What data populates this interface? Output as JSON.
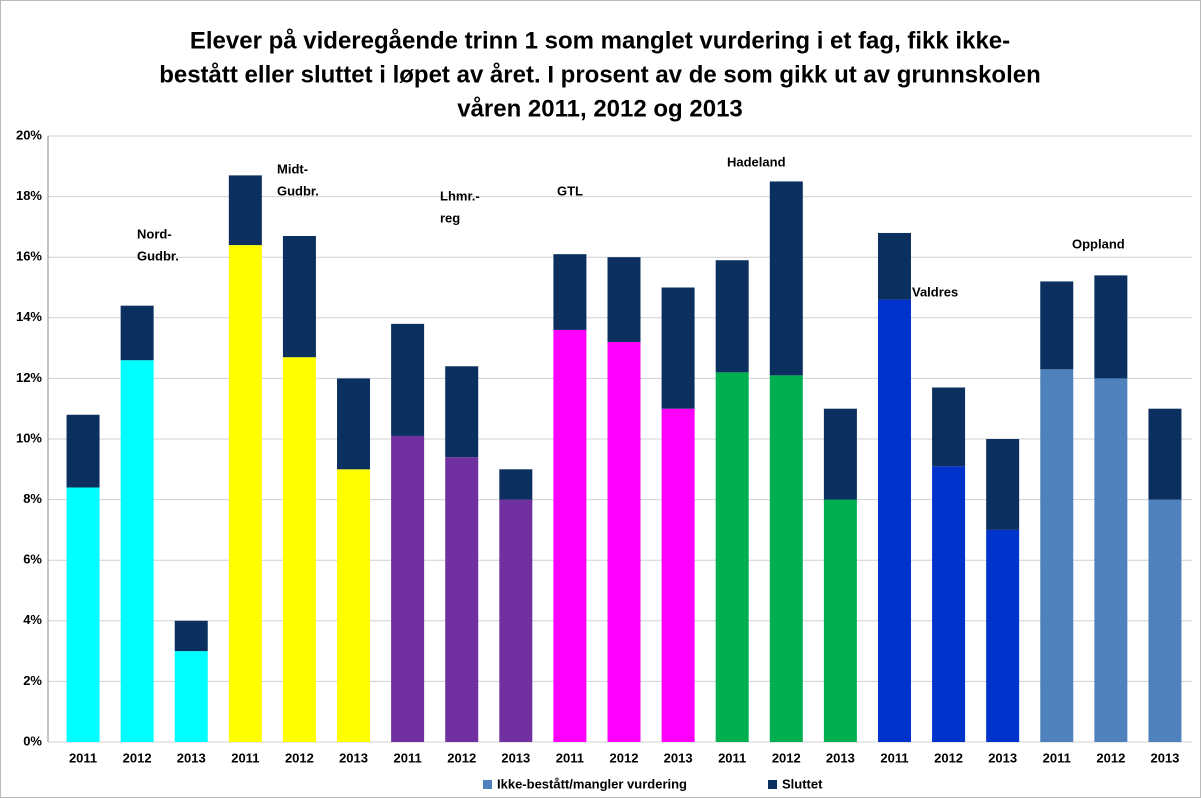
{
  "chart_data": {
    "type": "stacked_bar",
    "title": [
      "Elever på videregående trinn 1 som manglet vurdering i et fag, fikk ikke-",
      "bestått eller sluttet i løpet av året. I prosent av de som gikk ut av grunnskolen",
      "våren 2011, 2012 og 2013"
    ],
    "categories": [
      "2011",
      "2012",
      "2013",
      "2011",
      "2012",
      "2013",
      "2011",
      "2012",
      "2013",
      "2011",
      "2012",
      "2013",
      "2011",
      "2012",
      "2013",
      "2011",
      "2012",
      "2013",
      "2011",
      "2012",
      "2013"
    ],
    "annotations": [
      [
        "Nord-",
        "Gudbr."
      ],
      [
        "Midt-",
        "Gudbr."
      ],
      [
        "Lhmr.-",
        "reg"
      ],
      [
        "GTL"
      ],
      [
        "Hadeland"
      ],
      [
        "Valdres"
      ],
      [
        "Oppland"
      ]
    ],
    "series": [
      {
        "name": "Ikke-bestått/mangler vurdering",
        "color": "#4f81bd",
        "colors": [
          "#00ffff",
          "#00ffff",
          "#00ffff",
          "#ffff00",
          "#ffff00",
          "#ffff00",
          "#7030a0",
          "#7030a0",
          "#7030a0",
          "#ff00ff",
          "#ff00ff",
          "#ff00ff",
          "#00b050",
          "#00b050",
          "#00b050",
          "#0033cc",
          "#0033cc",
          "#0033cc",
          "#4f81bd",
          "#4f81bd",
          "#4f81bd"
        ],
        "values": [
          8.4,
          12.6,
          3.0,
          16.4,
          12.7,
          9.0,
          10.1,
          9.4,
          8.0,
          13.6,
          13.2,
          11.0,
          12.2,
          12.1,
          8.0,
          14.6,
          9.1,
          7.0,
          12.3,
          12.0,
          8.0
        ]
      },
      {
        "name": "Sluttet",
        "color": "#0b2f5e",
        "values": [
          2.4,
          1.8,
          1.0,
          2.3,
          4.0,
          3.0,
          3.7,
          3.0,
          1.0,
          2.5,
          2.8,
          4.0,
          3.7,
          6.4,
          3.0,
          2.2,
          2.6,
          3.0,
          2.9,
          3.4,
          3.0
        ]
      }
    ],
    "ylim": [
      0,
      20
    ],
    "yticks": [
      {
        "value": 0,
        "label": "0%"
      },
      {
        "value": 2,
        "label": "2%"
      },
      {
        "value": 4,
        "label": "4%"
      },
      {
        "value": 6,
        "label": "6%"
      },
      {
        "value": 8,
        "label": "8%"
      },
      {
        "value": 10,
        "label": "10%"
      },
      {
        "value": 12,
        "label": "12%"
      },
      {
        "value": 14,
        "label": "14%"
      },
      {
        "value": 16,
        "label": "16%"
      },
      {
        "value": 18,
        "label": "18%"
      },
      {
        "value": 20,
        "label": "20%"
      }
    ],
    "grid": true,
    "legend": "bottom"
  }
}
